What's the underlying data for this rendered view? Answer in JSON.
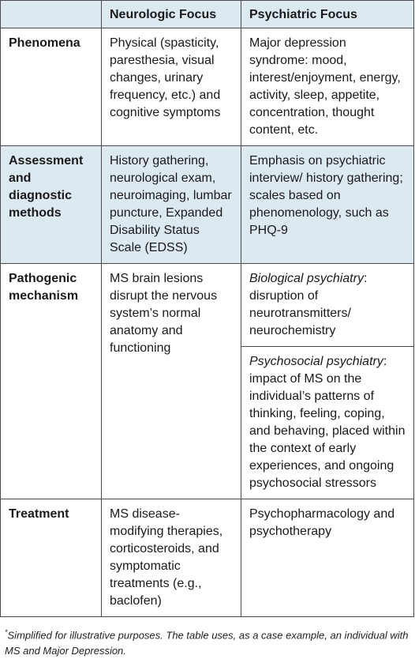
{
  "table": {
    "headers": [
      "",
      "Neurologic Focus",
      "Psychiatric Focus"
    ],
    "rows": [
      {
        "label": "Phenomena",
        "neuro": "Physical (spasticity, paresthesia, visual changes, urinary frequency, etc.) and cognitive symptoms",
        "psych": "Major depression syndrome: mood, interest/enjoyment, energy, activity, sleep, appetite, concentration, thought content, etc."
      },
      {
        "label": "Assessment and diagnostic methods",
        "neuro": "History gathering, neurological exam, neuroimaging, lumbar puncture, Expanded Disability Status Scale (EDSS)",
        "psych": "Emphasis on psychiatric interview/ history gathering; scales based on phenomenology, such as PHQ-9"
      },
      {
        "label": "Pathogenic mechanism",
        "neuro": "MS brain lesions disrupt the nervous system’s normal anatomy and functioning",
        "psych_a_term": "Biological psychiatry",
        "psych_a_text": ": disruption of neurotransmitters/ neurochemistry",
        "psych_b_term": "Psychosocial psychiatry",
        "psych_b_text": ": impact of MS on the individual’s patterns of thinking, feeling, coping, and behaving, placed within the context of early experiences, and ongoing psychosocial stressors"
      },
      {
        "label": "Treatment",
        "neuro": "MS disease-modifying therapies, corticosteroids, and symptomatic treatments (e.g., baclofen)",
        "psych": "Psychopharmacology and psychotherapy"
      }
    ]
  },
  "footnote": {
    "marker": "*",
    "text": "Simplified for illustrative purposes. The table uses, as a case example, an individual with MS and Major Depression."
  }
}
